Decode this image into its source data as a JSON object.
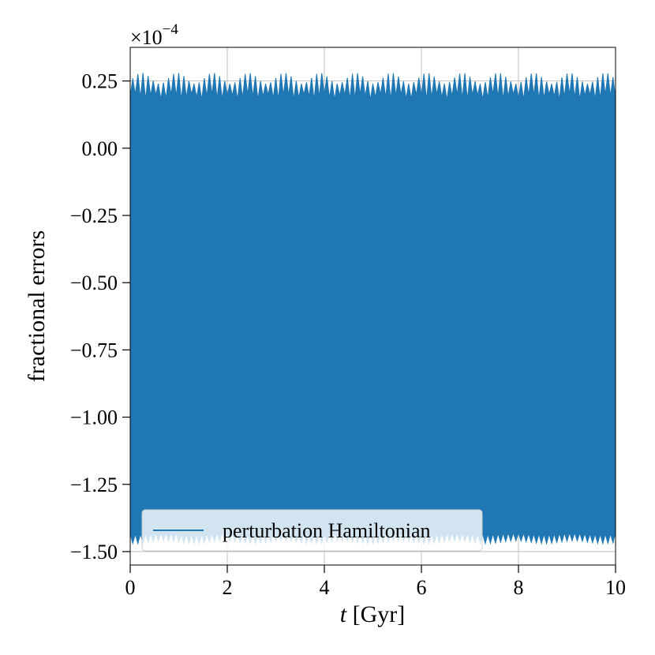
{
  "chart_data": {
    "type": "line",
    "title": "",
    "xlabel_italic": "t",
    "xlabel_rest": " [Gyr]",
    "ylabel": "fractional errors",
    "y_offset_base": "×10",
    "y_offset_exp": "−4",
    "xlim": [
      0,
      10
    ],
    "ylim": [
      -1.55,
      0.375
    ],
    "x_ticks": [
      0,
      2,
      4,
      6,
      8,
      10
    ],
    "x_tick_labels": [
      "0",
      "2",
      "4",
      "6",
      "8",
      "10"
    ],
    "y_ticks": [
      0.25,
      0.0,
      -0.25,
      -0.5,
      -0.75,
      -1.0,
      -1.25,
      -1.5
    ],
    "y_tick_labels": [
      "0.25",
      "0.00",
      "−0.25",
      "−0.50",
      "−0.75",
      "−1.00",
      "−1.25",
      "−1.50"
    ],
    "grid": true,
    "legend_position": "lower-left",
    "series": [
      {
        "name": "perturbation Hamiltonian",
        "color": "#1f77b4",
        "band_upper_peak": 0.28,
        "band_upper_base": 0.19,
        "band_lower_peak": -1.47,
        "band_lower_base": -1.43,
        "oscillation_count": 95
      }
    ]
  }
}
